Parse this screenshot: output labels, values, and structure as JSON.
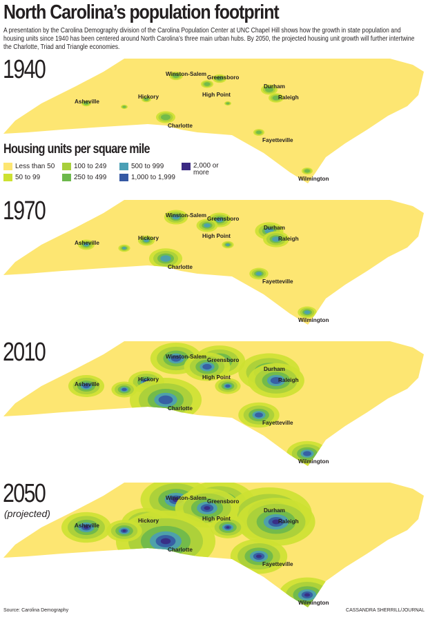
{
  "title": "North Carolina’s population footprint",
  "intro": "A presentation by the Carolina Demography division of the Carolina Population Center at UNC Chapel Hill shows how the growth in state population and housing units since 1940 has been centered around North Carolina’s three main urban hubs. By 2050, the projected housing unit growth will further intertwine the Charlotte, Triad and Triangle economies.",
  "legend": {
    "title": "Housing units per square mile",
    "items": [
      {
        "label": "Less than 50",
        "color": "#fde672"
      },
      {
        "label": "50 to 99",
        "color": "#cde132"
      },
      {
        "label": "100 to 249",
        "color": "#a8cf3b"
      },
      {
        "label": "250 to 499",
        "color": "#6db84c"
      },
      {
        "label": "500 to 999",
        "color": "#4a9fb5"
      },
      {
        "label": "1,000 to 1,999",
        "color": "#3559a3"
      },
      {
        "label": "2,000 or more",
        "color": "#3a2a83"
      }
    ]
  },
  "maps": [
    {
      "year": "1940",
      "subtitle": ""
    },
    {
      "year": "1970",
      "subtitle": ""
    },
    {
      "year": "2010",
      "subtitle": ""
    },
    {
      "year": "2050",
      "subtitle": "(projected)"
    }
  ],
  "cities": [
    "Winston-Salem",
    "Greensboro",
    "Durham",
    "High Point",
    "Raleigh",
    "Hickory",
    "Asheville",
    "Charlotte",
    "Fayetteville",
    "Wilmington"
  ],
  "source": "Source: Carolina Demography",
  "credit": "CASSANDRA SHERRILL/JOURNAL"
}
